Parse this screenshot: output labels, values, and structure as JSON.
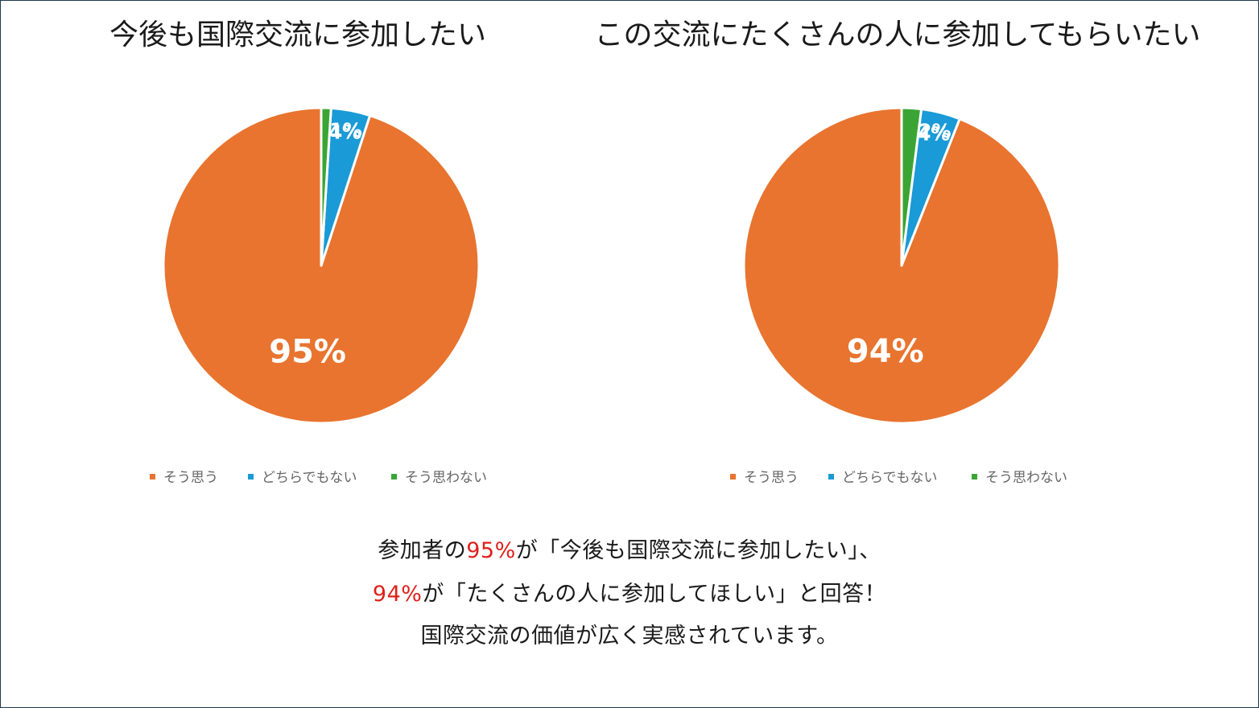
{
  "colors": {
    "agree": "#e8742f",
    "neutral": "#1a9ad6",
    "disagree": "#3aa535",
    "highlight": "#e0201a"
  },
  "chart_data": [
    {
      "type": "pie",
      "title": "今後も国際交流に参加したい",
      "categories": [
        "そう思う",
        "どちらでもない",
        "そう思わない"
      ],
      "values": [
        95,
        4,
        1
      ],
      "labels": [
        "95%",
        "4%",
        "1%"
      ],
      "legend": "bottom"
    },
    {
      "type": "pie",
      "title": "この交流にたくさんの人に参加してもらいたい",
      "categories": [
        "そう思う",
        "どちらでもない",
        "そう思わない"
      ],
      "values": [
        94,
        4,
        2
      ],
      "labels": [
        "94%",
        "4%",
        "2%"
      ],
      "legend": "bottom"
    }
  ],
  "summary": {
    "line1_pre": "参加者の",
    "line1_pct": "95%",
    "line1_post": "が「今後も国際交流に参加したい」、",
    "line2_pct": "94%",
    "line2_post": "が「たくさんの人に参加してほしい」と回答！",
    "line3": "国際交流の価値が広く実感されています。"
  }
}
